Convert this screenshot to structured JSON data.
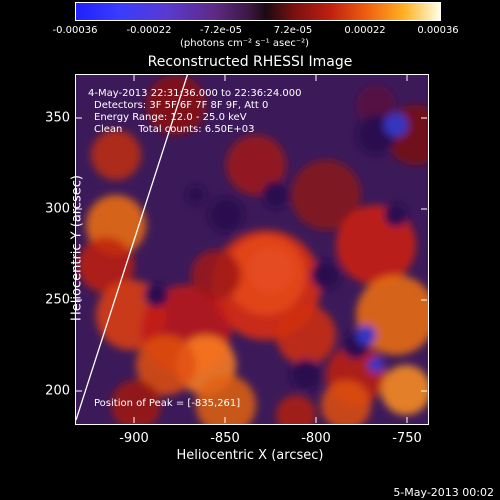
{
  "colorbar": {
    "ticks": [
      "-0.00036",
      "-0.00022",
      "-7.2e-05",
      "7.2e-05",
      "0.00022",
      "0.00036"
    ],
    "units": "(photons cm⁻² s⁻¹ asec⁻²)"
  },
  "title": "Reconstructed RHESSI Image",
  "annotations": {
    "time_range": "4-May-2013 22:31:36.000 to 22:36:24.000",
    "detectors": "Detectors: 3F 5F 6F 7F 8F 9F, Att 0",
    "energy": "Energy Range: 12.0 - 25.0 keV",
    "clean": "Clean     Total counts: 6.50E+03",
    "peak": "Position of Peak = [-835,261]"
  },
  "axes": {
    "y_label": "Heliocentric Y (arcsec)",
    "x_label": "Heliocentric X (arcsec)",
    "y_ticks": [
      "350",
      "300",
      "250",
      "200"
    ],
    "x_ticks": [
      "-900",
      "-850",
      "-800",
      "-750"
    ]
  },
  "datestamp": "5-May-2013 00:02"
}
